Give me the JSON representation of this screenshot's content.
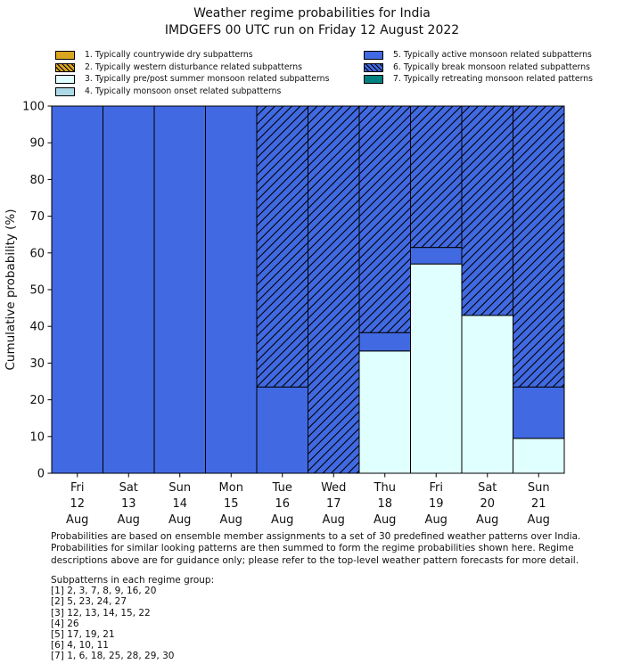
{
  "chart_data": {
    "type": "bar",
    "stacked": true,
    "title": "Weather regime probabilities for India",
    "subtitle": "IMDGEFS 00 UTC run on Friday 12 August 2022",
    "xlabel": "",
    "ylabel": "Cumulative probability (%)",
    "units": "%",
    "ylim": [
      0,
      100
    ],
    "yticks": [
      0,
      10,
      20,
      30,
      40,
      50,
      60,
      70,
      80,
      90,
      100
    ],
    "grid": false,
    "legend_position": "top",
    "categories": [
      {
        "day": "Fri",
        "date": "12",
        "month": "Aug"
      },
      {
        "day": "Sat",
        "date": "13",
        "month": "Aug"
      },
      {
        "day": "Sun",
        "date": "14",
        "month": "Aug"
      },
      {
        "day": "Mon",
        "date": "15",
        "month": "Aug"
      },
      {
        "day": "Tue",
        "date": "16",
        "month": "Aug"
      },
      {
        "day": "Wed",
        "date": "17",
        "month": "Aug"
      },
      {
        "day": "Thu",
        "date": "18",
        "month": "Aug"
      },
      {
        "day": "Fri",
        "date": "19",
        "month": "Aug"
      },
      {
        "day": "Sat",
        "date": "20",
        "month": "Aug"
      },
      {
        "day": "Sun",
        "date": "21",
        "month": "Aug"
      }
    ],
    "series": [
      {
        "id": 1,
        "name": "1. Typically countrywide dry subpatterns",
        "color": "#DAA520",
        "hatch": false,
        "values": [
          0,
          0,
          0,
          0,
          0,
          0,
          0,
          0,
          0,
          0
        ]
      },
      {
        "id": 2,
        "name": "2. Typically western disturbance related subpatterns",
        "color": "#DAA520",
        "hatch": true,
        "values": [
          0,
          0,
          0,
          0,
          0,
          0,
          0,
          0,
          0,
          0
        ]
      },
      {
        "id": 3,
        "name": "3. Typically pre/post summer monsoon related subpatterns",
        "color": "#E0FFFF",
        "hatch": false,
        "values": [
          0,
          0,
          0,
          0,
          0,
          0,
          33.3,
          57,
          43,
          9.5
        ]
      },
      {
        "id": 4,
        "name": "4. Typically monsoon onset related subpatterns",
        "color": "#ADD8E6",
        "hatch": false,
        "values": [
          0,
          0,
          0,
          0,
          0,
          0,
          0,
          0,
          0,
          0
        ]
      },
      {
        "id": 5,
        "name": "5. Typically active monsoon related subpatterns",
        "color": "#4169E1",
        "hatch": false,
        "values": [
          100,
          100,
          100,
          100,
          23.5,
          0,
          5,
          4.5,
          0,
          14
        ]
      },
      {
        "id": 6,
        "name": "6. Typically break monsoon related subpatterns",
        "color": "#4169E1",
        "hatch": true,
        "values": [
          0,
          0,
          0,
          0,
          76.5,
          100,
          61.7,
          38.5,
          57,
          76.5
        ]
      },
      {
        "id": 7,
        "name": "7. Typically retreating monsoon related patterns",
        "color": "#008080",
        "hatch": false,
        "values": [
          0,
          0,
          0,
          0,
          0,
          0,
          0,
          0,
          0,
          0
        ]
      }
    ]
  },
  "footnote": {
    "lines": [
      "Probabilities are based on ensemble member assignments to a set of 30 predefined weather patterns over India.",
      "Probabilities for similar looking patterns are then summed to form the regime probabilities shown here. Regime",
      "descriptions above are for guidance only; please refer to the top-level weather pattern forecasts for more detail."
    ]
  },
  "subpatterns": {
    "heading": "Subpatterns in each regime group:",
    "groups": [
      "[1] 2, 3, 7, 8, 9, 16, 20",
      "[2] 5, 23, 24, 27",
      "[3] 12, 13, 14, 15, 22",
      "[4] 26",
      "[5] 17, 19, 21",
      "[6] 4, 10, 11",
      "[7] 1, 6, 18, 25, 28, 29, 30"
    ]
  }
}
